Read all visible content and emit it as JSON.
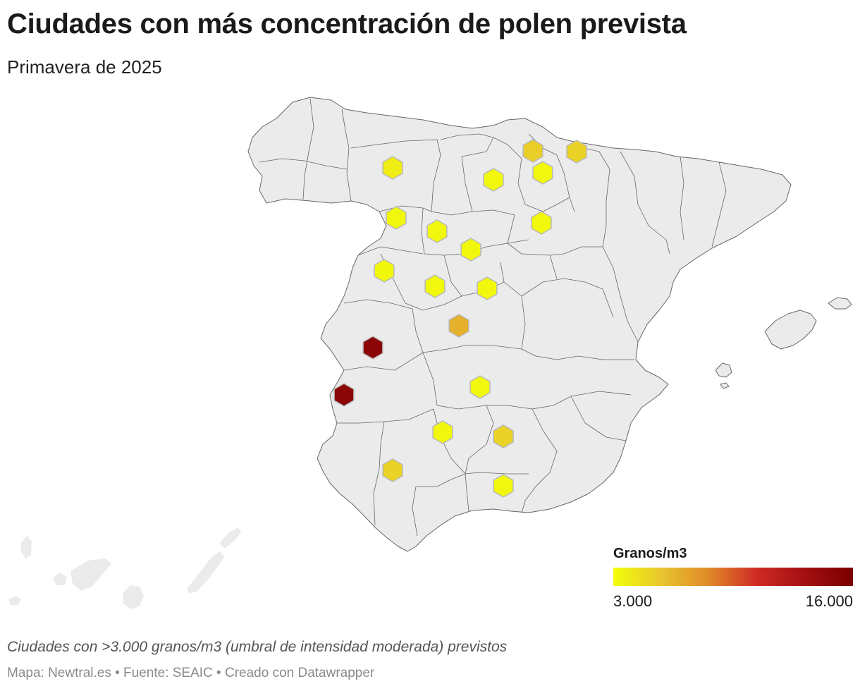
{
  "header": {
    "title": "Ciudades con más concentración de polen prevista",
    "subtitle": "Primavera de 2025"
  },
  "map": {
    "region": "Spain",
    "base_fill": "#ebebeb",
    "border_color": "#666666",
    "markers": [
      {
        "id": "m01",
        "value": 3800
      },
      {
        "id": "m02",
        "value": 5200
      },
      {
        "id": "m03",
        "value": 5000
      },
      {
        "id": "m04",
        "value": 3300
      },
      {
        "id": "m05",
        "value": 3300
      },
      {
        "id": "m06",
        "value": 3300
      },
      {
        "id": "m07",
        "value": 3300
      },
      {
        "id": "m08",
        "value": 3300
      },
      {
        "id": "m09",
        "value": 3300
      },
      {
        "id": "m10",
        "value": 3300
      },
      {
        "id": "m11",
        "value": 3300
      },
      {
        "id": "m12",
        "value": 3300
      },
      {
        "id": "m13",
        "value": 3300
      },
      {
        "id": "m14",
        "value": 6500
      },
      {
        "id": "m15",
        "value": 15000
      },
      {
        "id": "m16",
        "value": 15000
      },
      {
        "id": "m17",
        "value": 4600
      },
      {
        "id": "m18",
        "value": 3300
      },
      {
        "id": "m19",
        "value": 5000
      },
      {
        "id": "m20",
        "value": 5000
      },
      {
        "id": "m21",
        "value": 3300
      }
    ]
  },
  "legend": {
    "title": "Granos/m3",
    "min_label": "3.000",
    "max_label": "16.000",
    "min_value": 3000,
    "max_value": 16000,
    "colors": [
      "#f2ff0a",
      "#e8c52e",
      "#e08a28",
      "#cf2a25",
      "#a30f12",
      "#7a0000"
    ]
  },
  "footer": {
    "note": "Ciudades con >3.000 granos/m3 (umbral de intensidad moderada) previstos",
    "source": "Mapa: Newtral.es • Fuente: SEAIC • Creado con Datawrapper"
  }
}
